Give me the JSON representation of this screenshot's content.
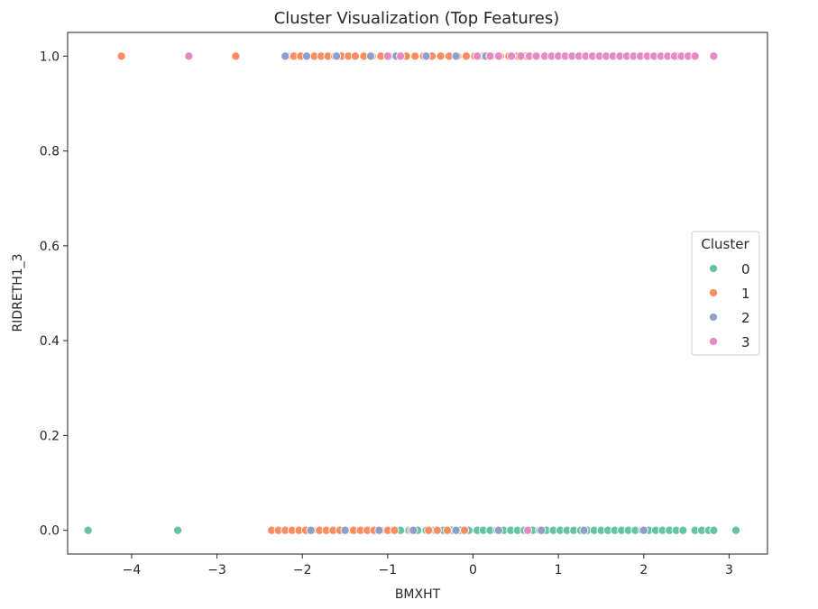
{
  "chart_data": {
    "type": "scatter",
    "title": "Cluster Visualization (Top Features)",
    "xlabel": "BMXHT",
    "ylabel": "RIDRETH1_3",
    "xlim": [
      -4.75,
      3.45
    ],
    "ylim": [
      -0.05,
      1.05
    ],
    "x_ticks": [
      -4,
      -3,
      -2,
      -1,
      0,
      1,
      2,
      3
    ],
    "x_tick_labels": [
      "−4",
      "−3",
      "−2",
      "−1",
      "0",
      "1",
      "2",
      "3"
    ],
    "y_ticks": [
      0.0,
      0.2,
      0.4,
      0.6,
      0.8,
      1.0
    ],
    "y_tick_labels": [
      "0.0",
      "0.2",
      "0.4",
      "0.6",
      "0.8",
      "1.0"
    ],
    "grid": false,
    "legend": {
      "title": "Cluster",
      "placement": "center-right"
    },
    "series": [
      {
        "name": "0",
        "color": "#66c2a5",
        "points": [
          [
            -4.51,
            0
          ],
          [
            -3.46,
            0
          ],
          [
            -0.95,
            0
          ],
          [
            -0.85,
            0
          ],
          [
            -0.75,
            0
          ],
          [
            -0.65,
            0
          ],
          [
            -0.55,
            0
          ],
          [
            -0.45,
            0
          ],
          [
            -0.35,
            0
          ],
          [
            -0.25,
            0
          ],
          [
            -0.15,
            0
          ],
          [
            -0.05,
            0
          ],
          [
            0.05,
            0
          ],
          [
            0.12,
            0
          ],
          [
            0.2,
            0
          ],
          [
            0.28,
            0
          ],
          [
            0.36,
            0
          ],
          [
            0.44,
            0
          ],
          [
            0.52,
            0
          ],
          [
            0.6,
            0
          ],
          [
            0.7,
            0
          ],
          [
            0.78,
            0
          ],
          [
            0.86,
            0
          ],
          [
            0.94,
            0
          ],
          [
            1.02,
            0
          ],
          [
            1.1,
            0
          ],
          [
            1.18,
            0
          ],
          [
            1.26,
            0
          ],
          [
            1.34,
            0
          ],
          [
            1.42,
            0
          ],
          [
            1.5,
            0
          ],
          [
            1.58,
            0
          ],
          [
            1.66,
            0
          ],
          [
            1.74,
            0
          ],
          [
            1.82,
            0
          ],
          [
            1.9,
            0
          ],
          [
            1.98,
            0
          ],
          [
            2.06,
            0
          ],
          [
            2.14,
            0
          ],
          [
            2.22,
            0
          ],
          [
            2.3,
            0
          ],
          [
            2.38,
            0
          ],
          [
            2.46,
            0
          ],
          [
            2.6,
            0
          ],
          [
            2.68,
            0
          ],
          [
            2.76,
            0
          ],
          [
            2.82,
            0
          ],
          [
            3.08,
            0
          ]
        ]
      },
      {
        "name": "1",
        "color": "#fc8d62",
        "points": [
          [
            -4.12,
            1
          ],
          [
            -2.78,
            1
          ],
          [
            -2.18,
            1
          ],
          [
            -2.1,
            1
          ],
          [
            -2.02,
            1
          ],
          [
            -1.94,
            1
          ],
          [
            -1.86,
            1
          ],
          [
            -1.78,
            1
          ],
          [
            -1.7,
            1
          ],
          [
            -1.62,
            1
          ],
          [
            -1.54,
            1
          ],
          [
            -1.46,
            1
          ],
          [
            -1.38,
            1
          ],
          [
            -1.28,
            1
          ],
          [
            -1.18,
            1
          ],
          [
            -1.08,
            1
          ],
          [
            -0.98,
            1
          ],
          [
            -0.88,
            1
          ],
          [
            -0.78,
            1
          ],
          [
            -0.68,
            1
          ],
          [
            -0.58,
            1
          ],
          [
            -0.48,
            1
          ],
          [
            -0.38,
            1
          ],
          [
            -0.28,
            1
          ],
          [
            -0.18,
            1
          ],
          [
            -0.08,
            1
          ],
          [
            0.02,
            1
          ],
          [
            0.12,
            1
          ],
          [
            0.22,
            1
          ],
          [
            0.32,
            1
          ],
          [
            0.42,
            1
          ],
          [
            0.52,
            1
          ],
          [
            0.62,
            1
          ],
          [
            0.82,
            1
          ],
          [
            1.0,
            1
          ],
          [
            -2.36,
            0
          ],
          [
            -2.28,
            0
          ],
          [
            -2.2,
            0
          ],
          [
            -2.12,
            0
          ],
          [
            -2.04,
            0
          ],
          [
            -1.96,
            0
          ],
          [
            -1.88,
            0
          ],
          [
            -1.8,
            0
          ],
          [
            -1.72,
            0
          ],
          [
            -1.64,
            0
          ],
          [
            -1.56,
            0
          ],
          [
            -1.48,
            0
          ],
          [
            -1.4,
            0
          ],
          [
            -1.32,
            0
          ],
          [
            -1.24,
            0
          ],
          [
            -1.16,
            0
          ],
          [
            -1.08,
            0
          ],
          [
            -1.0,
            0
          ],
          [
            -0.92,
            0
          ],
          [
            -0.72,
            0
          ],
          [
            -0.52,
            0
          ],
          [
            -0.42,
            0
          ],
          [
            -0.3,
            0
          ],
          [
            -0.1,
            0
          ]
        ]
      },
      {
        "name": "2",
        "color": "#8da0cb",
        "points": [
          [
            -2.2,
            1
          ],
          [
            -1.95,
            1
          ],
          [
            -1.6,
            1
          ],
          [
            -1.2,
            1
          ],
          [
            -0.9,
            1
          ],
          [
            -0.55,
            1
          ],
          [
            -0.2,
            1
          ],
          [
            0.15,
            1
          ],
          [
            0.45,
            1
          ],
          [
            0.75,
            1
          ],
          [
            1.3,
            1
          ],
          [
            1.9,
            1
          ],
          [
            2.4,
            1
          ],
          [
            -1.9,
            0
          ],
          [
            -1.5,
            0
          ],
          [
            -1.1,
            0
          ],
          [
            -0.7,
            0
          ],
          [
            -0.2,
            0
          ],
          [
            0.3,
            0
          ],
          [
            0.8,
            0
          ],
          [
            1.3,
            0
          ],
          [
            2.0,
            0
          ]
        ]
      },
      {
        "name": "3",
        "color": "#e78ac3",
        "points": [
          [
            -3.33,
            1
          ],
          [
            -1.0,
            1
          ],
          [
            -0.85,
            1
          ],
          [
            0.05,
            1
          ],
          [
            0.2,
            1
          ],
          [
            0.3,
            1
          ],
          [
            0.45,
            1
          ],
          [
            0.56,
            1
          ],
          [
            0.66,
            1
          ],
          [
            0.74,
            1
          ],
          [
            0.84,
            1
          ],
          [
            0.92,
            1
          ],
          [
            1.0,
            1
          ],
          [
            1.08,
            1
          ],
          [
            1.16,
            1
          ],
          [
            1.24,
            1
          ],
          [
            1.32,
            1
          ],
          [
            1.4,
            1
          ],
          [
            1.48,
            1
          ],
          [
            1.56,
            1
          ],
          [
            1.64,
            1
          ],
          [
            1.72,
            1
          ],
          [
            1.8,
            1
          ],
          [
            1.88,
            1
          ],
          [
            1.96,
            1
          ],
          [
            2.04,
            1
          ],
          [
            2.12,
            1
          ],
          [
            2.2,
            1
          ],
          [
            2.28,
            1
          ],
          [
            2.36,
            1
          ],
          [
            2.44,
            1
          ],
          [
            2.52,
            1
          ],
          [
            2.6,
            1
          ],
          [
            2.82,
            1
          ],
          [
            0.64,
            0
          ]
        ]
      }
    ]
  }
}
